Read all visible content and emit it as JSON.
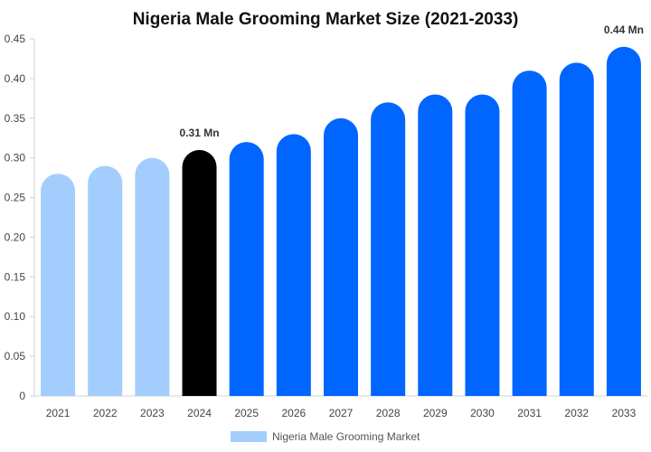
{
  "chart_data": {
    "type": "bar",
    "title": "Nigeria Male Grooming Market Size (2021-2033)",
    "xlabel": "",
    "ylabel": "",
    "categories": [
      "2021",
      "2022",
      "2023",
      "2024",
      "2025",
      "2026",
      "2027",
      "2028",
      "2029",
      "2030",
      "2031",
      "2032",
      "2033"
    ],
    "series": [
      {
        "name": "Nigeria Male Grooming Market",
        "values": [
          0.28,
          0.29,
          0.3,
          0.31,
          0.32,
          0.33,
          0.35,
          0.37,
          0.38,
          0.38,
          0.41,
          0.42,
          0.44
        ]
      }
    ],
    "bar_colors": [
      "#a3cdfc",
      "#a3cdfc",
      "#a3cdfc",
      "#000000",
      "#0066ff",
      "#0066ff",
      "#0066ff",
      "#0066ff",
      "#0066ff",
      "#0066ff",
      "#0066ff",
      "#0066ff",
      "#0066ff"
    ],
    "data_labels": [
      {
        "category": "2024",
        "text": "0.31 Mn"
      },
      {
        "category": "2033",
        "text": "0.44 Mn"
      }
    ],
    "ylim": [
      0,
      0.45
    ],
    "yticks": [
      0,
      0.05,
      0.1,
      0.15,
      0.2,
      0.25,
      0.3,
      0.35,
      0.4,
      0.45
    ],
    "ytick_labels": [
      "0",
      "0.05",
      "0.10",
      "0.15",
      "0.20",
      "0.25",
      "0.30",
      "0.35",
      "0.40",
      "0.45"
    ],
    "grid": false,
    "legend": {
      "position": "bottom-center",
      "label": "Nigeria Male Grooming Market",
      "swatch_color": "#a3cdfc"
    }
  }
}
